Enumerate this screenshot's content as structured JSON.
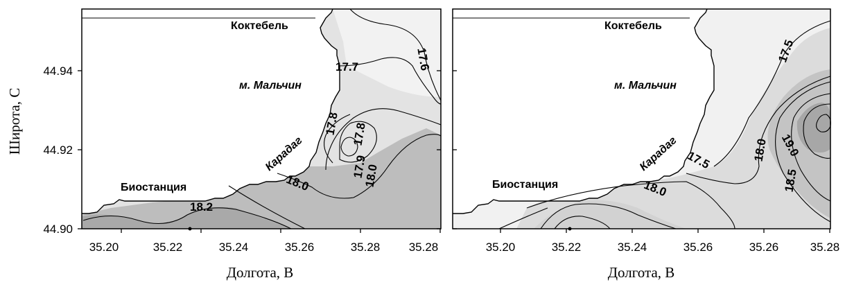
{
  "colors": {
    "level_a": "#f4f4f4",
    "level_b": "#e3e3e3",
    "level_c": "#cfcfcf",
    "level_d": "#b9b9b9",
    "level_e": "#a8a8a8",
    "land": "#ffffff",
    "line": "#000000"
  },
  "axes": {
    "y_title": "Широта, С",
    "x_title": "Долгота, В",
    "y_ticks": [
      "44.94",
      "44.92",
      "44.90"
    ],
    "x_ticks": [
      "35.20",
      "35.22",
      "35.24",
      "35.26",
      "35.28"
    ],
    "x_range": [
      35.19,
      35.28
    ],
    "y_range": [
      44.9,
      44.954
    ]
  },
  "panels": [
    {
      "places": {
        "koktebel": "Коктебель",
        "malchin": "м. Мальчин",
        "karadag": "Карадаг",
        "biostation": "Биостанция"
      },
      "contour_labels": [
        "17.7",
        "17.6",
        "17.8",
        "17.8",
        "17.9",
        "18.0",
        "18.0",
        "18.2"
      ]
    },
    {
      "places": {
        "koktebel": "Коктебель",
        "malchin": "м. Мальчин",
        "karadag": "Карадаг",
        "biostation": "Биостанция"
      },
      "contour_labels": [
        "17.5",
        "17.5",
        "18.0",
        "18.0",
        "19.0",
        "18.5"
      ]
    }
  ]
}
